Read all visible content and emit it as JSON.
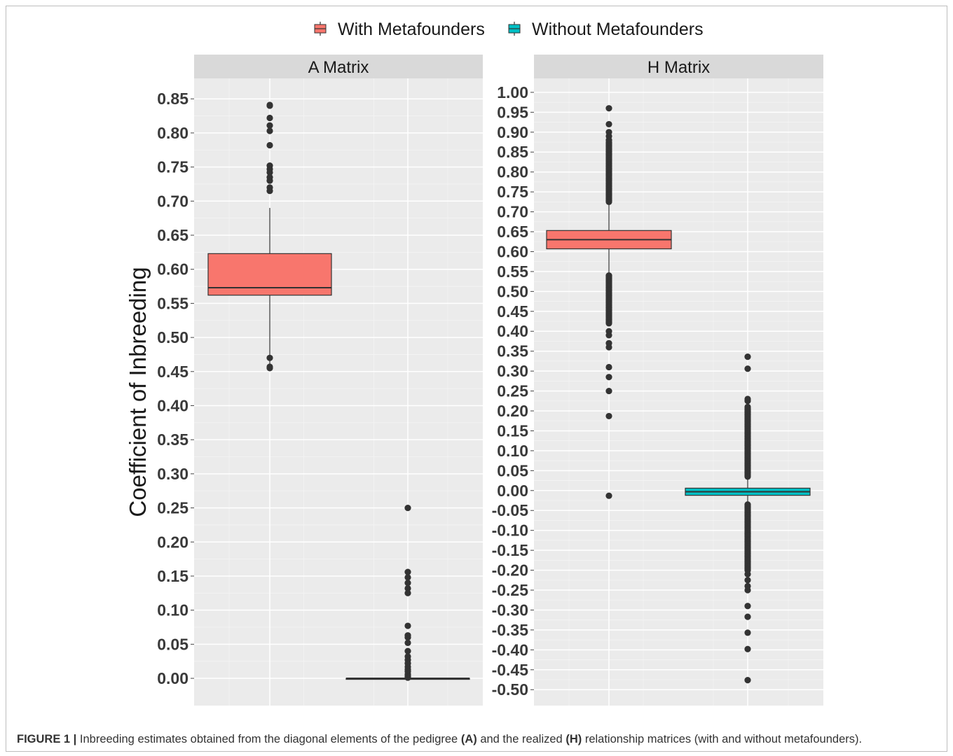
{
  "chart_data": [
    {
      "type": "box",
      "panel_title": "A Matrix",
      "ylabel": "Coefficient of Inbreeding",
      "ylim": [
        -0.04,
        0.88
      ],
      "yticks": [
        0.0,
        0.05,
        0.1,
        0.15,
        0.2,
        0.25,
        0.3,
        0.35,
        0.4,
        0.45,
        0.5,
        0.55,
        0.6,
        0.65,
        0.7,
        0.75,
        0.8,
        0.85
      ],
      "ytick_labels": [
        "0.00",
        "0.05",
        "0.10",
        "0.15",
        "0.20",
        "0.25",
        "0.30",
        "0.35",
        "0.40",
        "0.45",
        "0.50",
        "0.55",
        "0.60",
        "0.65",
        "0.70",
        "0.75",
        "0.80",
        "0.85"
      ],
      "grid": true,
      "series": [
        {
          "name": "With Metafounders",
          "q1": 0.562,
          "median": 0.573,
          "q3": 0.623,
          "whisker_low": 0.458,
          "whisker_high": 0.69,
          "outliers": [
            0.841,
            0.84,
            0.822,
            0.811,
            0.803,
            0.782,
            0.752,
            0.747,
            0.742,
            0.735,
            0.73,
            0.72,
            0.715,
            0.47,
            0.457,
            0.455
          ]
        },
        {
          "name": "Without Metafounders",
          "q1": 0.0,
          "median": 0.0,
          "q3": 0.0,
          "whisker_low": 0.0,
          "whisker_high": 0.0,
          "outliers": [
            0.25,
            0.156,
            0.148,
            0.14,
            0.132,
            0.125,
            0.077,
            0.063,
            0.06,
            0.052,
            0.04,
            0.032,
            0.027,
            0.022,
            0.017,
            0.013,
            0.01,
            0.006,
            0.003,
            0.001
          ]
        }
      ]
    },
    {
      "type": "box",
      "panel_title": "H Matrix",
      "ylim": [
        -0.54,
        1.035
      ],
      "yticks": [
        -0.5,
        -0.45,
        -0.4,
        -0.35,
        -0.3,
        -0.25,
        -0.2,
        -0.15,
        -0.1,
        -0.05,
        0.0,
        0.05,
        0.1,
        0.15,
        0.2,
        0.25,
        0.3,
        0.35,
        0.4,
        0.45,
        0.5,
        0.55,
        0.6,
        0.65,
        0.7,
        0.75,
        0.8,
        0.85,
        0.9,
        0.95,
        1.0
      ],
      "ytick_labels": [
        "-0.50",
        "-0.45",
        "-0.40",
        "-0.35",
        "-0.30",
        "-0.25",
        "-0.20",
        "-0.15",
        "-0.10",
        "-0.05",
        "0.00",
        "0.05",
        "0.10",
        "0.15",
        "0.20",
        "0.25",
        "0.30",
        "0.35",
        "0.40",
        "0.45",
        "0.50",
        "0.55",
        "0.60",
        "0.65",
        "0.70",
        "0.75",
        "0.80",
        "0.85",
        "0.90",
        "0.95",
        "1.00"
      ],
      "grid": true,
      "series": [
        {
          "name": "With Metafounders",
          "q1": 0.607,
          "median": 0.63,
          "q3": 0.653,
          "whisker_low": 0.54,
          "whisker_high": 0.72,
          "outliers_dense": [
            [
              0.725,
              0.875
            ],
            [
              0.42,
              0.54
            ]
          ],
          "outliers": [
            0.96,
            0.92,
            0.9,
            0.89,
            0.88,
            0.4,
            0.39,
            0.37,
            0.36,
            0.31,
            0.285,
            0.25,
            0.187,
            -0.013
          ]
        },
        {
          "name": "Without Metafounders",
          "q1": -0.012,
          "median": -0.003,
          "q3": 0.006,
          "whisker_low": -0.03,
          "whisker_high": 0.03,
          "outliers_dense": [
            [
              0.035,
              0.205
            ],
            [
              -0.2,
              -0.035
            ]
          ],
          "outliers": [
            0.336,
            0.306,
            0.23,
            0.225,
            0.21,
            -0.21,
            -0.225,
            -0.24,
            -0.25,
            -0.29,
            -0.317,
            -0.357,
            -0.398,
            -0.476
          ]
        }
      ]
    }
  ],
  "legend": {
    "position": "top",
    "items": [
      {
        "label": "With Metafounders",
        "color": "#f8766d"
      },
      {
        "label": "Without Metafounders",
        "color": "#00bfc4"
      }
    ]
  },
  "caption": {
    "figure_label": "FIGURE 1 |",
    "text_1": " Inbreeding estimates obtained from the diagonal elements of the pedigree ",
    "bold_1": "(A)",
    "text_2": " and the realized ",
    "bold_2": "(H)",
    "text_3": " relationship matrices (with and without metafounders)."
  }
}
